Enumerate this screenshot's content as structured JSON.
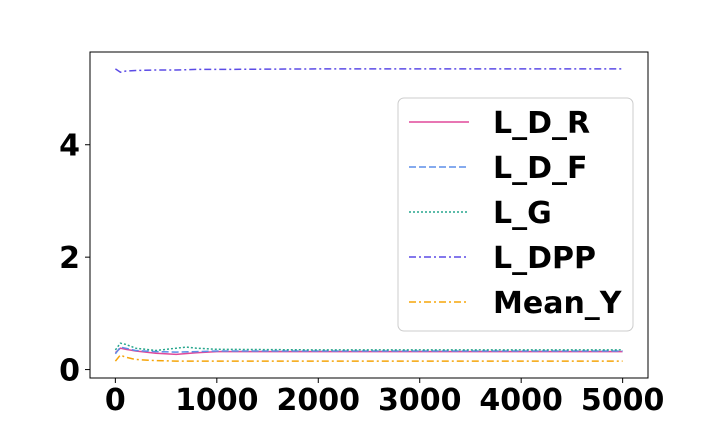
{
  "chart_data": {
    "type": "line",
    "title": "",
    "xlabel": "",
    "ylabel": "",
    "xlim": [
      -250,
      5250
    ],
    "ylim": [
      -0.15,
      5.65
    ],
    "xticks": [
      0,
      1000,
      2000,
      3000,
      4000,
      5000
    ],
    "xtick_labels": [
      "0",
      "1000",
      "2000",
      "3000",
      "4000",
      "5000"
    ],
    "yticks": [
      0,
      2,
      4
    ],
    "ytick_labels": [
      "0",
      "2",
      "4"
    ],
    "grid": false,
    "legend_position": "center-right",
    "series": [
      {
        "name": "L_D_R",
        "color": "#e0489a",
        "dash": "solid",
        "x": [
          0,
          50,
          100,
          200,
          400,
          600,
          800,
          1000,
          2000,
          3000,
          4000,
          5000
        ],
        "y": [
          0.3,
          0.38,
          0.36,
          0.33,
          0.29,
          0.27,
          0.3,
          0.32,
          0.32,
          0.32,
          0.32,
          0.32
        ]
      },
      {
        "name": "L_D_F",
        "color": "#5d8ee8",
        "dash": "dashed",
        "x": [
          0,
          50,
          100,
          200,
          400,
          600,
          800,
          1000,
          2000,
          3000,
          4000,
          5000
        ],
        "y": [
          0.28,
          0.4,
          0.38,
          0.34,
          0.32,
          0.31,
          0.32,
          0.33,
          0.33,
          0.33,
          0.33,
          0.33
        ]
      },
      {
        "name": "L_G",
        "color": "#27a68d",
        "dash": "dotted",
        "x": [
          0,
          50,
          100,
          200,
          400,
          600,
          700,
          800,
          1000,
          2000,
          3000,
          4000,
          5000
        ],
        "y": [
          0.35,
          0.47,
          0.45,
          0.38,
          0.34,
          0.38,
          0.4,
          0.38,
          0.36,
          0.35,
          0.35,
          0.35,
          0.35
        ]
      },
      {
        "name": "L_DPP",
        "color": "#5b4be6",
        "dash": "dashdot",
        "x": [
          0,
          50,
          100,
          200,
          400,
          600,
          800,
          1000,
          2000,
          3000,
          4000,
          5000
        ],
        "y": [
          5.35,
          5.29,
          5.31,
          5.32,
          5.33,
          5.33,
          5.34,
          5.34,
          5.35,
          5.35,
          5.35,
          5.35
        ]
      },
      {
        "name": "Mean_Y",
        "color": "#f5a50a",
        "dash": "dashdot",
        "x": [
          0,
          50,
          100,
          200,
          400,
          600,
          800,
          1000,
          2000,
          3000,
          4000,
          5000
        ],
        "y": [
          0.15,
          0.26,
          0.22,
          0.18,
          0.16,
          0.15,
          0.15,
          0.15,
          0.15,
          0.15,
          0.15,
          0.15
        ]
      }
    ]
  }
}
